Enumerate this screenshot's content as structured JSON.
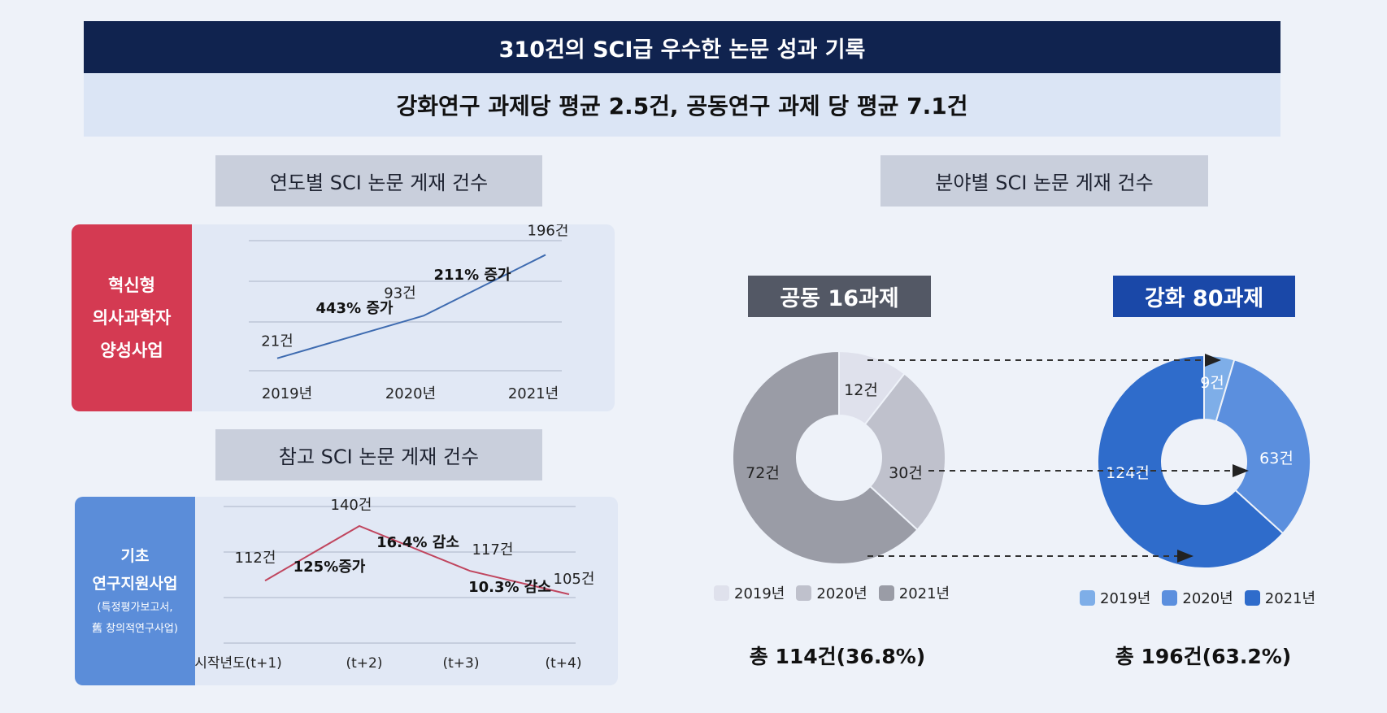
{
  "header": {
    "title": "310건의 SCI급 우수한 논문 성과 기록",
    "subtitle": "강화연구 과제당 평균 2.5건, 공동연구 과제 당 평균 7.1건"
  },
  "left": {
    "yearly_label": "연도별 SCI 논문 게재 건수",
    "program1": {
      "line1": "혁신형",
      "line2": "의사과학자",
      "line3": "양성사업"
    },
    "reference_label": "참고 SCI 논문 게재 건수",
    "program2": {
      "line1": "기초",
      "line2": "연구지원사업",
      "line3": "(특정평가보고서,",
      "line4": "舊 창의적연구사업)"
    }
  },
  "right": {
    "field_label": "분야별 SCI 논문 게재 건수",
    "joint_label": "공동 16과제",
    "enhanced_label": "강화 80과제",
    "joint_total": "총 114건(36.8%)",
    "enhanced_total": "총 196건(63.2%)"
  },
  "colors": {
    "navy": "#10234f",
    "red": "#d43a52",
    "blue_panel": "#5b8dd9",
    "line1": "#3e6bb0",
    "line2": "#c0455e"
  },
  "chart_data": [
    {
      "type": "line",
      "categories": [
        "2019년",
        "2020년",
        "2021년"
      ],
      "series": [
        {
          "values": [
            21,
            93,
            196
          ]
        }
      ],
      "data_labels": [
        "21건",
        "93건",
        "196건"
      ],
      "annotations": [
        "443% 증가",
        "211% 증가"
      ],
      "grid": true
    },
    {
      "type": "line",
      "categories": [
        "시작년도(t+1)",
        "(t+2)",
        "(t+3)",
        "(t+4)"
      ],
      "series": [
        {
          "values": [
            112,
            140,
            117,
            105
          ]
        }
      ],
      "data_labels": [
        "112건",
        "140건",
        "117건",
        "105건"
      ],
      "annotations": [
        "125%증가",
        "16.4% 감소",
        "10.3% 감소"
      ],
      "grid": true
    },
    {
      "type": "pie",
      "donut": true,
      "categories": [
        "2019년",
        "2020년",
        "2021년"
      ],
      "values": [
        12,
        30,
        72
      ],
      "data_labels": [
        "12건",
        "30건",
        "72건"
      ],
      "colors": [
        "#dfe1ec",
        "#bfc1cc",
        "#9a9ca6"
      ]
    },
    {
      "type": "pie",
      "donut": true,
      "categories": [
        "2019년",
        "2020년",
        "2021년"
      ],
      "values": [
        9,
        63,
        124
      ],
      "data_labels": [
        "9건",
        "63건",
        "124건"
      ],
      "colors": [
        "#7eaee8",
        "#5b8fde",
        "#2f6ccb"
      ]
    }
  ]
}
